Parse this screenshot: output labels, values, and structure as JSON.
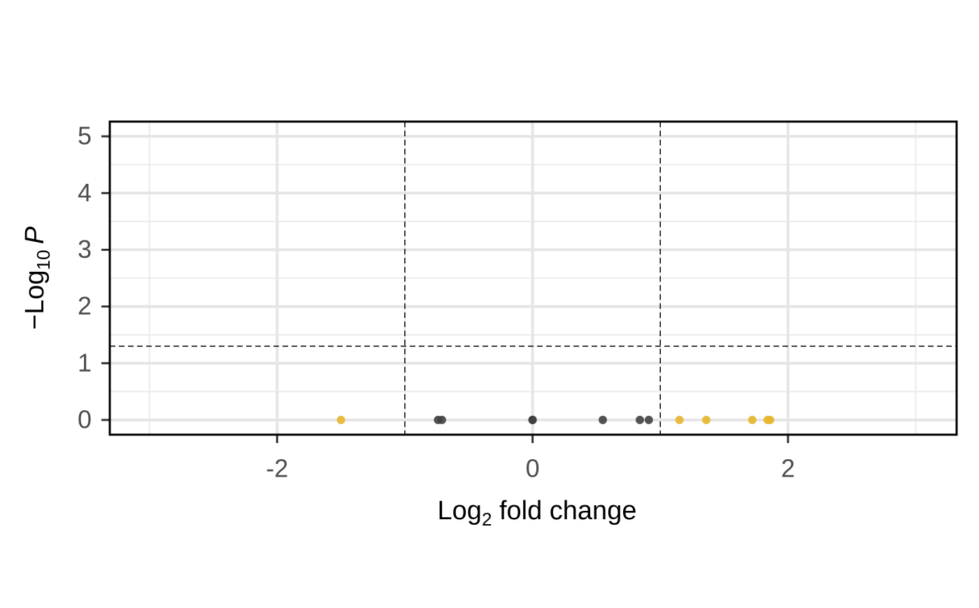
{
  "chart_data": {
    "type": "scatter",
    "x_label": {
      "text": "Log",
      "sub": "2",
      "rest": " fold change"
    },
    "y_label": {
      "prefix": "−Log",
      "sub": "10",
      "italic": "P"
    },
    "xlim": [
      -3.31,
      3.32
    ],
    "ylim": [
      -0.26,
      5.26
    ],
    "xticks": [
      -2,
      0,
      2
    ],
    "yticks": [
      0,
      1,
      2,
      3,
      4,
      5
    ],
    "x_minor_grid": [
      -3,
      -1,
      1,
      3
    ],
    "y_minor_grid": [
      0.5,
      1.5,
      2.5,
      3.5,
      4.5
    ],
    "grid": true,
    "vlines": [
      -1,
      1
    ],
    "hline": 1.3,
    "series": [
      {
        "color": "#404040",
        "x": [
          -0.74,
          -0.71,
          0,
          0,
          0,
          0.55,
          0.84,
          0.91
        ],
        "values": [
          0,
          0,
          0,
          0,
          0,
          0,
          0,
          0
        ]
      },
      {
        "color": "#e6b52a",
        "x": [
          -1.5,
          1.15,
          1.36,
          1.72,
          1.84,
          1.86
        ],
        "values": [
          0,
          0,
          0,
          0,
          0,
          0
        ]
      }
    ]
  }
}
